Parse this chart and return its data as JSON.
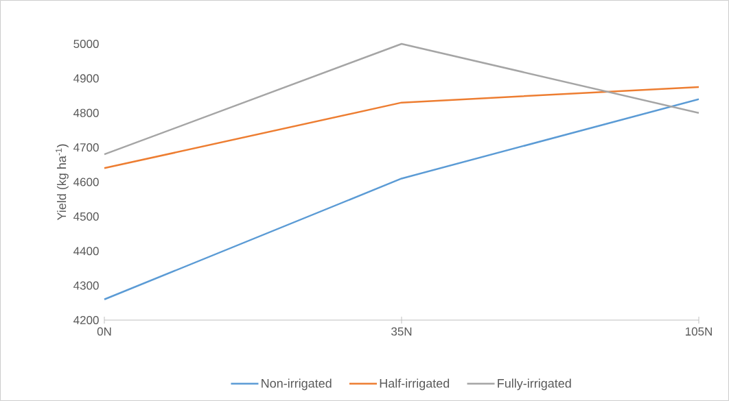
{
  "chart_data": {
    "type": "line",
    "categories": [
      "0N",
      "35N",
      "105N"
    ],
    "ylabel": "Yield (kg ha$^{-1}$)",
    "series": [
      {
        "name": "Non-irrigated",
        "color": "#5b9bd5",
        "values": [
          4260,
          4610,
          4840
        ]
      },
      {
        "name": "Half-irrigated",
        "color": "#ed7d31",
        "values": [
          4640,
          4830,
          4875
        ]
      },
      {
        "name": "Fully-irrigated",
        "color": "#a5a5a5",
        "values": [
          4680,
          5000,
          4800
        ]
      }
    ],
    "ylim": [
      4200,
      5000
    ],
    "yticks": [
      4200,
      4300,
      4400,
      4500,
      4600,
      4700,
      4800,
      4900,
      5000
    ],
    "legend": "bottom"
  }
}
